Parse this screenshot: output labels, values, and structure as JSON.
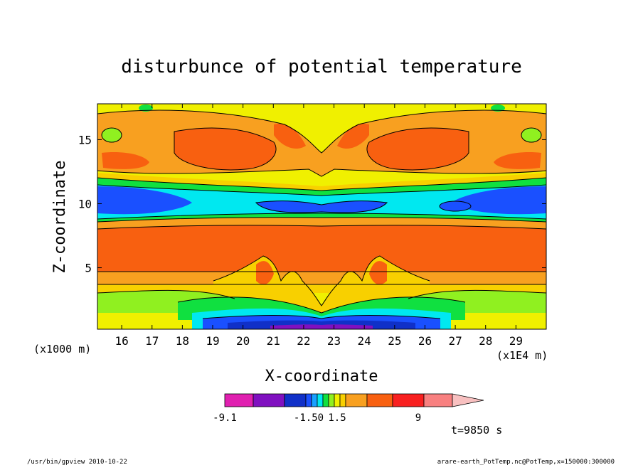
{
  "chart_data": {
    "type": "heatmap",
    "title": "disturbunce of potential temperature",
    "xlabel": "X-coordinate",
    "ylabel": "Z-coordinate",
    "x_unit": "(x1E4 m)",
    "y_unit": "(x1000 m)",
    "xlim": [
      15.2,
      30.0
    ],
    "ylim": [
      0.2,
      17.8
    ],
    "x_ticks": [
      16,
      17,
      18,
      19,
      20,
      21,
      22,
      23,
      24,
      25,
      26,
      27,
      28,
      29
    ],
    "y_ticks": [
      5,
      10,
      15
    ],
    "color_levels": [
      -9.1,
      -1.5,
      0,
      1.5,
      9
    ],
    "colorbar_labels": [
      "-9.1",
      "-1.50",
      "1.5",
      "9"
    ],
    "colorbar_colors": [
      "#e020b0",
      "#8010c0",
      "#1030c8",
      "#1a50ff",
      "#18a0ff",
      "#00e8f0",
      "#10e040",
      "#90f020",
      "#f0f000",
      "#f8d000",
      "#f8a020",
      "#f86010",
      "#f82020",
      "#f88080",
      "#f8c0c0"
    ],
    "annotation": "t=9850 s"
  },
  "footer": {
    "left": "/usr/bin/gpview  2010-10-22",
    "right": "arare-earth_PotTemp.nc@PotTemp,x=150000:300000"
  }
}
